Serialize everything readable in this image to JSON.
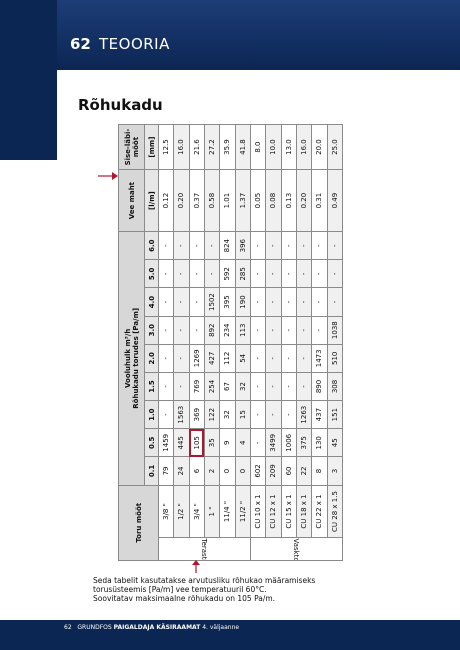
{
  "header": {
    "page_number": "62",
    "section": "TEOORIA"
  },
  "title": "Rõhukadu",
  "table": {
    "col_pipe": "Toru mõõt",
    "col_flow_line1": "Vooluhulk m³/h",
    "col_flow_line2": "Rõhukadu torudes [Pa/m]",
    "col_water": "Vee maht",
    "col_inner_line1": "Sise-läbi-",
    "col_inner_line2": "mõõt",
    "flows": [
      "0.1",
      "0.5",
      "1.0",
      "1.5",
      "2.0",
      "3.0",
      "4.0",
      "5.0",
      "6.0"
    ],
    "unit_water": "[l/m]",
    "unit_inner": "[mm]",
    "groups": {
      "steel": "Terastorud",
      "copper": "Vasktorud"
    },
    "rows": [
      {
        "label": "3/8 \"",
        "vals": [
          "79",
          "1459",
          "-",
          "-",
          "-",
          "-",
          "-",
          "-",
          "-"
        ],
        "water": "0.12",
        "inner": "12.5"
      },
      {
        "label": "1/2 \"",
        "vals": [
          "24",
          "445",
          "1563",
          "-",
          "-",
          "-",
          "-",
          "-",
          "-"
        ],
        "water": "0.20",
        "inner": "16.0"
      },
      {
        "label": "3/4 \"",
        "vals": [
          "6",
          "105",
          "369",
          "769",
          "1269",
          "-",
          "-",
          "-",
          "-"
        ],
        "water": "0.37",
        "inner": "21.6"
      },
      {
        "label": "1 \"",
        "vals": [
          "2",
          "35",
          "122",
          "254",
          "427",
          "892",
          "1502",
          "-",
          "-"
        ],
        "water": "0.58",
        "inner": "27.2"
      },
      {
        "label": "11/4 \"",
        "vals": [
          "0",
          "9",
          "32",
          "67",
          "112",
          "234",
          "395",
          "592",
          "824"
        ],
        "water": "1.01",
        "inner": "35.9"
      },
      {
        "label": "11/2 \"",
        "vals": [
          "0",
          "4",
          "15",
          "32",
          "54",
          "113",
          "190",
          "285",
          "396"
        ],
        "water": "1.37",
        "inner": "41.8"
      },
      {
        "label": "CU 10 x 1",
        "vals": [
          "602",
          "-",
          "-",
          "-",
          "-",
          "-",
          "-",
          "-",
          "-"
        ],
        "water": "0.05",
        "inner": "8.0"
      },
      {
        "label": "CU 12 x 1",
        "vals": [
          "209",
          "3499",
          "-",
          "-",
          "-",
          "-",
          "-",
          "-",
          "-"
        ],
        "water": "0.08",
        "inner": "10.0"
      },
      {
        "label": "CU 15 x 1",
        "vals": [
          "60",
          "1006",
          "-",
          "-",
          "-",
          "-",
          "-",
          "-",
          "-"
        ],
        "water": "0.13",
        "inner": "13.0"
      },
      {
        "label": "CU 18 x 1",
        "vals": [
          "22",
          "375",
          "1263",
          "-",
          "-",
          "-",
          "-",
          "-",
          "-"
        ],
        "water": "0.20",
        "inner": "16.0"
      },
      {
        "label": "CU 22 x 1",
        "vals": [
          "8",
          "130",
          "437",
          "890",
          "1473",
          "-",
          "-",
          "-",
          "-"
        ],
        "water": "0.31",
        "inner": "20.0"
      },
      {
        "label": "CU 28 x 1.5",
        "vals": [
          "3",
          "45",
          "151",
          "308",
          "510",
          "1038",
          "-",
          "-",
          "-"
        ],
        "water": "0.49",
        "inner": "25.0"
      }
    ]
  },
  "caption": {
    "line1": "Seda tabelit kasutatakse arvutusliku rõhukao määramiseks",
    "line2": "torusüsteemis [Pa/m] vee temperatuuril 60°C.",
    "line3": "Soovitatav maksimaalne rõhukadu on 105 Pa/m."
  },
  "footer": {
    "page": "62",
    "brand": "GRUNDFOS",
    "book": "PAIGALDAJA KÄSIRAAMAT",
    "edition": "4. väljaanne"
  },
  "colors": {
    "navy": "#0c2653",
    "highlight": "#b3152e"
  }
}
